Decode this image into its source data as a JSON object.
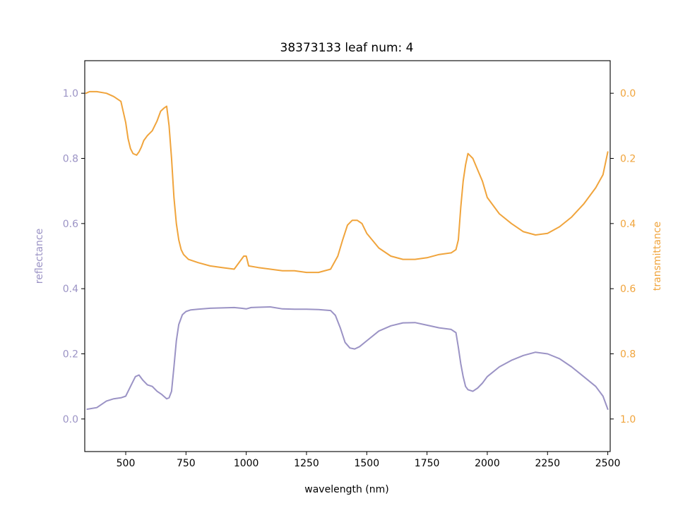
{
  "chart_data": {
    "type": "line",
    "title": "38373133 leaf num: 4",
    "xlabel": "wavelength (nm)",
    "xlim": [
      330,
      2510
    ],
    "xticks": [
      500,
      750,
      1000,
      1250,
      1500,
      1750,
      2000,
      2250,
      2500
    ],
    "xtick_labels": [
      "500",
      "750",
      "1000",
      "1250",
      "1500",
      "1750",
      "2000",
      "2250",
      "2500"
    ],
    "grid": false,
    "legend": "none",
    "left_axis": {
      "label": "reflectance",
      "ylim": [
        -0.1,
        1.1
      ],
      "ticks": [
        0.0,
        0.2,
        0.4,
        0.6,
        0.8,
        1.0
      ],
      "tick_labels": [
        "0.0",
        "0.2",
        "0.4",
        "0.6",
        "0.8",
        "1.0"
      ],
      "color": "#9b93c5"
    },
    "right_axis": {
      "label": "transmittance",
      "ylim": [
        1.1,
        -0.1
      ],
      "inverted": true,
      "ticks": [
        0.0,
        0.2,
        0.4,
        0.6,
        0.8,
        1.0
      ],
      "tick_labels": [
        "0.0",
        "0.2",
        "0.4",
        "0.6",
        "0.8",
        "1.0"
      ],
      "color": "#f0a43c"
    },
    "series": [
      {
        "axis": "left",
        "color": "#9b93c5",
        "x": [
          340,
          380,
          420,
          450,
          480,
          500,
          520,
          540,
          555,
          570,
          590,
          610,
          630,
          650,
          670,
          680,
          690,
          700,
          710,
          720,
          735,
          750,
          770,
          800,
          850,
          900,
          950,
          980,
          1000,
          1020,
          1050,
          1100,
          1150,
          1200,
          1250,
          1300,
          1350,
          1370,
          1390,
          1410,
          1430,
          1450,
          1470,
          1500,
          1550,
          1600,
          1650,
          1700,
          1750,
          1800,
          1850,
          1870,
          1880,
          1890,
          1900,
          1910,
          1920,
          1940,
          1960,
          1980,
          2000,
          2050,
          2100,
          2150,
          2200,
          2250,
          2300,
          2350,
          2400,
          2450,
          2480,
          2500
        ],
        "y": [
          0.03,
          0.035,
          0.055,
          0.062,
          0.065,
          0.07,
          0.1,
          0.13,
          0.135,
          0.12,
          0.105,
          0.1,
          0.085,
          0.075,
          0.062,
          0.065,
          0.085,
          0.16,
          0.24,
          0.29,
          0.32,
          0.33,
          0.335,
          0.337,
          0.34,
          0.341,
          0.342,
          0.34,
          0.338,
          0.342,
          0.343,
          0.344,
          0.338,
          0.337,
          0.337,
          0.336,
          0.333,
          0.318,
          0.28,
          0.235,
          0.218,
          0.215,
          0.222,
          0.24,
          0.27,
          0.286,
          0.295,
          0.296,
          0.288,
          0.28,
          0.275,
          0.265,
          0.22,
          0.17,
          0.13,
          0.1,
          0.09,
          0.085,
          0.095,
          0.11,
          0.13,
          0.16,
          0.18,
          0.195,
          0.205,
          0.2,
          0.185,
          0.16,
          0.13,
          0.1,
          0.07,
          0.03
        ]
      },
      {
        "axis": "right",
        "color": "#f0a43c",
        "x": [
          335,
          350,
          380,
          420,
          450,
          480,
          500,
          510,
          520,
          530,
          545,
          555,
          565,
          575,
          590,
          610,
          630,
          645,
          660,
          670,
          680,
          690,
          700,
          710,
          720,
          730,
          740,
          760,
          800,
          850,
          900,
          950,
          990,
          1000,
          1010,
          1050,
          1100,
          1150,
          1200,
          1250,
          1300,
          1350,
          1380,
          1400,
          1420,
          1440,
          1460,
          1480,
          1500,
          1550,
          1600,
          1650,
          1700,
          1750,
          1800,
          1850,
          1870,
          1880,
          1890,
          1900,
          1910,
          1920,
          1940,
          1960,
          1980,
          2000,
          2050,
          2100,
          2150,
          2200,
          2250,
          2300,
          2350,
          2400,
          2450,
          2480,
          2500
        ],
        "y": [
          0.0,
          -0.005,
          -0.005,
          0.0,
          0.01,
          0.025,
          0.09,
          0.14,
          0.17,
          0.185,
          0.19,
          0.18,
          0.165,
          0.145,
          0.13,
          0.115,
          0.085,
          0.055,
          0.045,
          0.04,
          0.1,
          0.2,
          0.32,
          0.4,
          0.45,
          0.48,
          0.495,
          0.51,
          0.52,
          0.53,
          0.535,
          0.54,
          0.5,
          0.5,
          0.53,
          0.535,
          0.54,
          0.545,
          0.545,
          0.55,
          0.55,
          0.54,
          0.5,
          0.45,
          0.405,
          0.39,
          0.39,
          0.4,
          0.43,
          0.475,
          0.5,
          0.51,
          0.51,
          0.505,
          0.495,
          0.49,
          0.48,
          0.45,
          0.35,
          0.27,
          0.22,
          0.185,
          0.2,
          0.235,
          0.27,
          0.32,
          0.37,
          0.4,
          0.425,
          0.435,
          0.43,
          0.41,
          0.38,
          0.34,
          0.29,
          0.25,
          0.18
        ]
      }
    ]
  }
}
